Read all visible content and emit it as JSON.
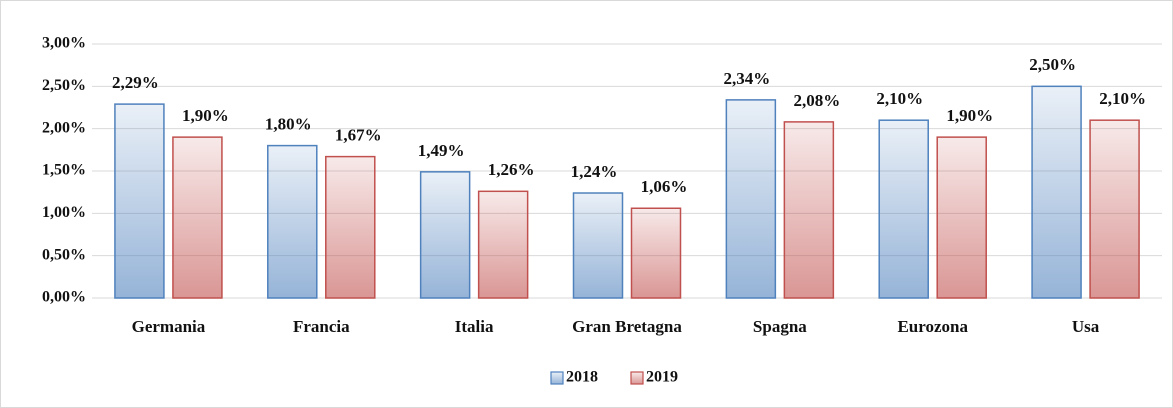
{
  "chart_data": {
    "type": "bar",
    "categories": [
      "Germania",
      "Francia",
      "Italia",
      "Gran Bretagna",
      "Spagna",
      "Eurozona",
      "Usa"
    ],
    "series": [
      {
        "name": "2018",
        "color": "#4f81bd",
        "values": [
          2.29,
          1.8,
          1.49,
          1.24,
          2.34,
          2.1,
          2.5
        ],
        "value_labels": [
          "2,29%",
          "1,80%",
          "1,49%",
          "1,24%",
          "2,34%",
          "2,10%",
          "2,50%"
        ]
      },
      {
        "name": "2019",
        "color": "#c0504d",
        "values": [
          1.9,
          1.67,
          1.26,
          1.06,
          2.08,
          1.9,
          2.1
        ],
        "value_labels": [
          "1,90%",
          "1,67%",
          "1,26%",
          "1,06%",
          "2,08%",
          "1,90%",
          "2,10%"
        ]
      }
    ],
    "ylim": [
      0,
      3
    ],
    "yticks": [
      {
        "value": 0,
        "label": "0,00%"
      },
      {
        "value": 0.5,
        "label": "0,50%"
      },
      {
        "value": 1,
        "label": "1,00%"
      },
      {
        "value": 1.5,
        "label": "1,50%"
      },
      {
        "value": 2,
        "label": "2,00%"
      },
      {
        "value": 2.5,
        "label": "2,50%"
      },
      {
        "value": 3,
        "label": "3,00%"
      }
    ],
    "grid": true,
    "legend": "bottom"
  }
}
